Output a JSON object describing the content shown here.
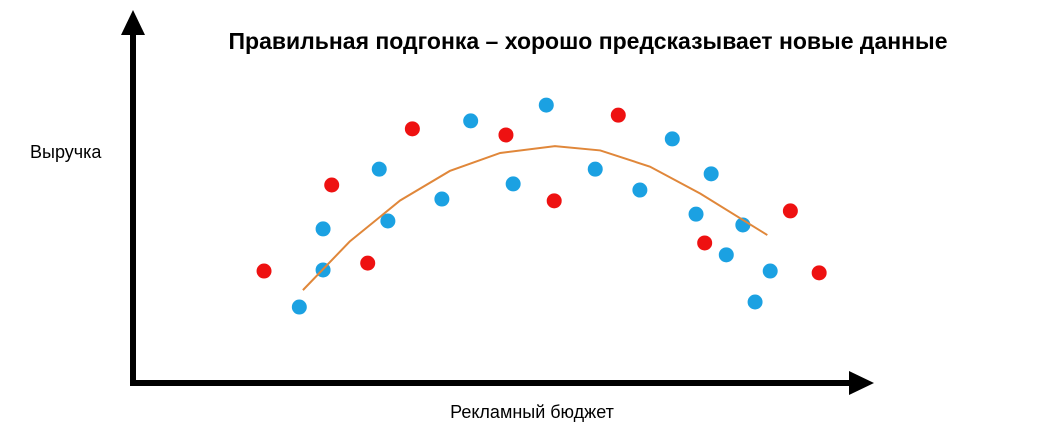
{
  "chart_data": {
    "type": "scatter",
    "title": "Правильная подгонка – хорошо предсказывает новые данные",
    "x_label": "Рекламный бюджет",
    "y_label": "Выручка",
    "xlim": [
      0,
      100
    ],
    "ylim": [
      0,
      100
    ],
    "series": [
      {
        "type": "scatter",
        "color": "#1ba1e2",
        "x": [
          23.1,
          26.4,
          26.4,
          34.2,
          35.4,
          42.9,
          46.9,
          52.8,
          57.4,
          64.2,
          70.4,
          74.9,
          78.2,
          80.3,
          82.4,
          84.7,
          86.4,
          88.5
        ],
        "values": [
          21.1,
          31.4,
          42.8,
          59.4,
          45,
          51.1,
          72.8,
          55.3,
          77.2,
          59.4,
          53.6,
          67.8,
          46.9,
          58.1,
          35.6,
          43.9,
          22.5,
          31.1
        ]
      },
      {
        "type": "scatter",
        "color": "#ee1111",
        "x": [
          18.2,
          27.6,
          32.6,
          38.8,
          51.8,
          58.5,
          67.4,
          79.4,
          91.3,
          95.3
        ],
        "values": [
          31.1,
          55,
          33.3,
          70.6,
          68.9,
          50.6,
          74.4,
          38.9,
          47.8,
          30.6
        ]
      },
      {
        "type": "line",
        "color": "#e0873a",
        "x": [
          23.6,
          30.1,
          37.1,
          44.0,
          51.0,
          58.6,
          64.9,
          71.8,
          78.8,
          88.1
        ],
        "values": [
          25.8,
          39.3,
          50.7,
          58.9,
          63.9,
          65.8,
          64.6,
          60.1,
          52.6,
          41.1
        ]
      }
    ]
  }
}
